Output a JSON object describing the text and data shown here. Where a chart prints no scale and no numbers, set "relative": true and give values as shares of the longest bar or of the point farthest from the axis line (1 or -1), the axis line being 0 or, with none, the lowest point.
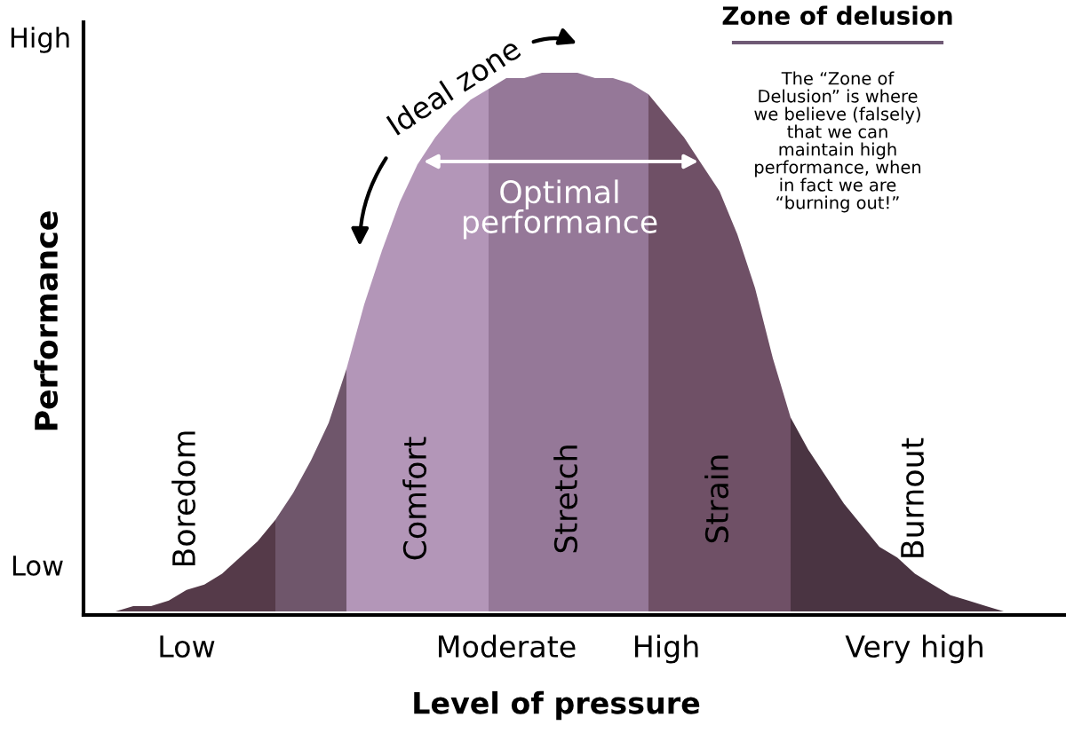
{
  "chart_data": {
    "type": "area",
    "relative": true,
    "xlabel": "Level of pressure",
    "ylabel": "Performance",
    "categories": [
      null,
      null,
      null,
      null,
      null,
      "Low",
      null,
      null,
      null,
      null,
      null,
      null,
      null,
      null,
      null,
      null,
      null,
      null,
      null,
      null,
      null,
      null,
      null,
      "Moderate",
      null,
      null,
      null,
      null,
      null,
      null,
      null,
      null,
      "High",
      null,
      null,
      null,
      null,
      null,
      null,
      null,
      null,
      null,
      null,
      null,
      null,
      null,
      "Very high",
      null,
      null,
      null,
      null,
      null,
      null,
      null
    ],
    "series": [
      {
        "name": "Boredom",
        "color": "#553a49",
        "values": [
          0,
          0,
          0.01,
          0.01,
          0.02,
          0.04,
          0.05,
          0.07,
          0.1,
          0.13,
          0.17,
          null,
          null,
          null,
          null,
          null,
          null,
          null,
          null,
          null,
          null,
          null,
          null,
          null,
          null,
          null,
          null,
          null,
          null,
          null,
          null,
          null,
          null,
          null,
          null,
          null,
          null,
          null,
          null,
          null,
          null,
          null,
          null,
          null,
          null,
          null,
          null,
          null,
          null,
          null,
          null,
          null,
          null,
          null
        ]
      },
      {
        "color": "#6f566b",
        "values": [
          null,
          null,
          null,
          null,
          null,
          null,
          null,
          null,
          null,
          null,
          0.17,
          0.22,
          0.28,
          0.35,
          0.45,
          null,
          null,
          null,
          null,
          null,
          null,
          null,
          null,
          null,
          null,
          null,
          null,
          null,
          null,
          null,
          null,
          null,
          null,
          null,
          null,
          null,
          null,
          null,
          null,
          null,
          null,
          null,
          null,
          null,
          null,
          null,
          null,
          null,
          null,
          null,
          null,
          null,
          null,
          null
        ]
      },
      {
        "name": "Comfort",
        "color": "#b396b8",
        "values": [
          null,
          null,
          null,
          null,
          null,
          null,
          null,
          null,
          null,
          null,
          null,
          null,
          null,
          null,
          0.45,
          0.57,
          0.67,
          0.76,
          0.83,
          0.88,
          0.92,
          0.95,
          0.97,
          null,
          null,
          null,
          null,
          null,
          null,
          null,
          null,
          null,
          null,
          null,
          null,
          null,
          null,
          null,
          null,
          null,
          null,
          null,
          null,
          null,
          null,
          null,
          null,
          null,
          null,
          null,
          null,
          null,
          null,
          null
        ]
      },
      {
        "name": "Stretch",
        "color": "#957898",
        "values": [
          null,
          null,
          null,
          null,
          null,
          null,
          null,
          null,
          null,
          null,
          null,
          null,
          null,
          null,
          null,
          null,
          null,
          null,
          null,
          null,
          null,
          null,
          0.97,
          0.99,
          0.99,
          1,
          1,
          1,
          0.99,
          0.99,
          0.98,
          0.96,
          null,
          null,
          null,
          null,
          null,
          null,
          null,
          null,
          null,
          null,
          null,
          null,
          null,
          null,
          null,
          null,
          null,
          null,
          null,
          null,
          null,
          null
        ]
      },
      {
        "name": "Strain",
        "color": "#6f5066",
        "values": [
          null,
          null,
          null,
          null,
          null,
          null,
          null,
          null,
          null,
          null,
          null,
          null,
          null,
          null,
          null,
          null,
          null,
          null,
          null,
          null,
          null,
          null,
          null,
          null,
          null,
          null,
          null,
          null,
          null,
          null,
          null,
          0.96,
          0.92,
          0.88,
          0.83,
          0.78,
          0.7,
          0.6,
          0.47,
          0.36,
          null,
          null,
          null,
          null,
          null,
          null,
          null,
          null,
          null,
          null,
          null,
          null,
          null,
          null
        ]
      },
      {
        "name": "Burnout",
        "color": "#4a3442",
        "values": [
          null,
          null,
          null,
          null,
          null,
          null,
          null,
          null,
          null,
          null,
          null,
          null,
          null,
          null,
          null,
          null,
          null,
          null,
          null,
          null,
          null,
          null,
          null,
          null,
          null,
          null,
          null,
          null,
          null,
          null,
          null,
          null,
          null,
          null,
          null,
          null,
          null,
          null,
          null,
          0.36,
          0.3,
          0.25,
          0.2,
          0.16,
          0.12,
          0.1,
          0.07,
          0.05,
          0.03,
          0.02,
          0.01,
          0,
          0,
          0
        ]
      }
    ],
    "annotations": [
      "High",
      "Low",
      "Ideal zone",
      "Optimal\nperformance",
      "Zone of delusion",
      "The “Zone of\nDelusion” is where\nwe believe (falsely)\nthat we can\nmaintain high\nperformance, when\nin fact we are\n“burning out!”"
    ]
  }
}
